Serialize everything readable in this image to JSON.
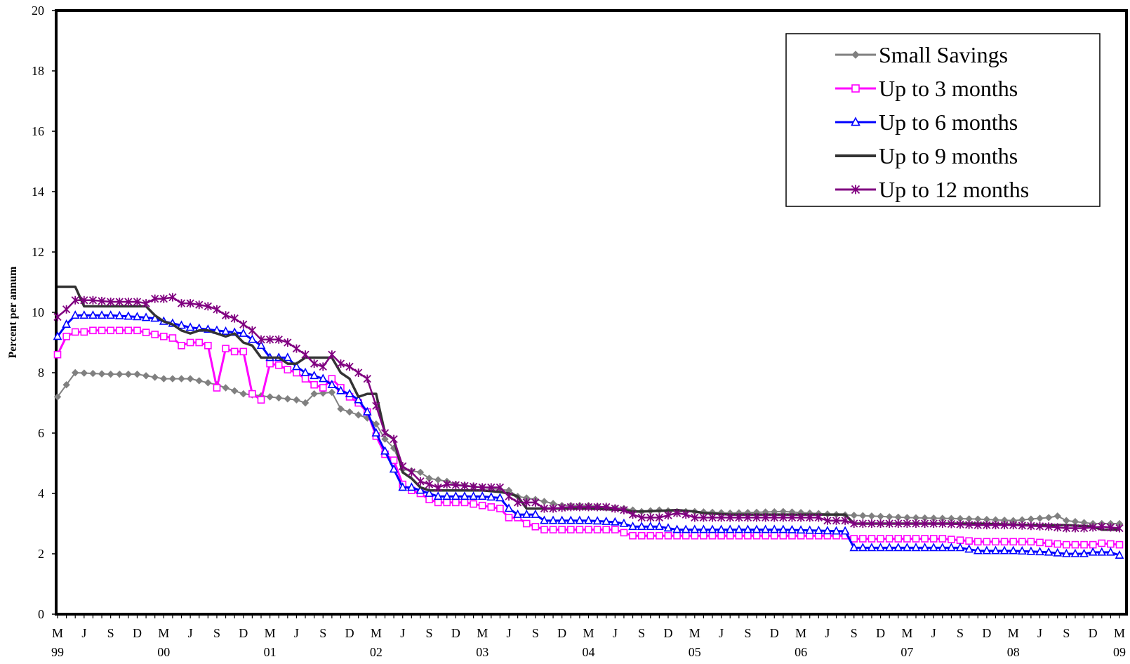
{
  "chart_data": {
    "type": "line",
    "title": "",
    "xlabel": "",
    "ylabel": "Percent per annum",
    "ylim": [
      0,
      20
    ],
    "yticks": [
      0,
      2,
      4,
      6,
      8,
      10,
      12,
      14,
      16,
      18,
      20
    ],
    "x_start": "1999-03",
    "x_end": "2009-03",
    "x_interval": "monthly",
    "x_tick_months": [
      "M",
      "J",
      "S",
      "D",
      "M",
      "J",
      "S",
      "D",
      "M",
      "J",
      "S",
      "D",
      "M",
      "J",
      "S",
      "D",
      "M",
      "J",
      "S",
      "D",
      "M",
      "J",
      "S",
      "D",
      "M",
      "J",
      "S",
      "D",
      "M",
      "J",
      "S",
      "D",
      "M",
      "J",
      "S",
      "D",
      "M",
      "J",
      "S",
      "D",
      "M"
    ],
    "x_tick_years": [
      "99",
      "00",
      "01",
      "02",
      "03",
      "04",
      "05",
      "06",
      "07",
      "08",
      "09"
    ],
    "grid": false,
    "legend_position": "top-right",
    "series": [
      {
        "name": "Small Savings",
        "color": "#808080",
        "marker": "diamond",
        "keypoints": [
          [
            0,
            7.2
          ],
          [
            1,
            7.6
          ],
          [
            2,
            8.0
          ],
          [
            6,
            7.95
          ],
          [
            9,
            7.95
          ],
          [
            12,
            7.8
          ],
          [
            15,
            7.8
          ],
          [
            18,
            7.6
          ],
          [
            21,
            7.3
          ],
          [
            24,
            7.2
          ],
          [
            27,
            7.1
          ],
          [
            28,
            7.0
          ],
          [
            29,
            7.3
          ],
          [
            31,
            7.35
          ],
          [
            32,
            6.8
          ],
          [
            33,
            6.7
          ],
          [
            34,
            6.6
          ],
          [
            35,
            6.5
          ],
          [
            36,
            6.3
          ],
          [
            37,
            5.8
          ],
          [
            38,
            5.5
          ],
          [
            39,
            4.8
          ],
          [
            41,
            4.7
          ],
          [
            42,
            4.5
          ],
          [
            44,
            4.4
          ],
          [
            45,
            4.3
          ],
          [
            48,
            4.2
          ],
          [
            51,
            4.1
          ],
          [
            52,
            3.9
          ],
          [
            54,
            3.8
          ],
          [
            57,
            3.6
          ],
          [
            60,
            3.6
          ],
          [
            64,
            3.5
          ],
          [
            66,
            3.4
          ],
          [
            68,
            3.45
          ],
          [
            70,
            3.4
          ],
          [
            72,
            3.4
          ],
          [
            76,
            3.35
          ],
          [
            82,
            3.4
          ],
          [
            88,
            3.3
          ],
          [
            96,
            3.2
          ],
          [
            104,
            3.15
          ],
          [
            108,
            3.1
          ],
          [
            112,
            3.2
          ],
          [
            113,
            3.25
          ],
          [
            114,
            3.1
          ],
          [
            117,
            3.0
          ],
          [
            120,
            3.0
          ]
        ]
      },
      {
        "name": "Up to 3 months",
        "color": "#ff00ff",
        "marker": "square",
        "keypoints": [
          [
            0,
            8.6
          ],
          [
            1,
            9.2
          ],
          [
            2,
            9.35
          ],
          [
            3,
            9.35
          ],
          [
            4,
            9.4
          ],
          [
            9,
            9.4
          ],
          [
            12,
            9.2
          ],
          [
            13,
            9.15
          ],
          [
            14,
            8.9
          ],
          [
            15,
            9.0
          ],
          [
            16,
            9.0
          ],
          [
            17,
            8.9
          ],
          [
            18,
            7.5
          ],
          [
            19,
            8.8
          ],
          [
            20,
            8.7
          ],
          [
            21,
            8.7
          ],
          [
            22,
            7.3
          ],
          [
            23,
            7.1
          ],
          [
            24,
            8.3
          ],
          [
            25,
            8.25
          ],
          [
            26,
            8.1
          ],
          [
            27,
            8.0
          ],
          [
            28,
            7.8
          ],
          [
            29,
            7.6
          ],
          [
            30,
            7.5
          ],
          [
            31,
            7.8
          ],
          [
            32,
            7.5
          ],
          [
            33,
            7.2
          ],
          [
            34,
            7.0
          ],
          [
            35,
            6.7
          ],
          [
            36,
            5.9
          ],
          [
            37,
            5.3
          ],
          [
            38,
            5.1
          ],
          [
            39,
            4.3
          ],
          [
            40,
            4.1
          ],
          [
            41,
            4.0
          ],
          [
            42,
            3.8
          ],
          [
            43,
            3.7
          ],
          [
            46,
            3.7
          ],
          [
            48,
            3.6
          ],
          [
            50,
            3.5
          ],
          [
            51,
            3.2
          ],
          [
            52,
            3.2
          ],
          [
            53,
            3.0
          ],
          [
            54,
            2.9
          ],
          [
            55,
            2.8
          ],
          [
            58,
            2.8
          ],
          [
            60,
            2.8
          ],
          [
            63,
            2.8
          ],
          [
            64,
            2.7
          ],
          [
            65,
            2.6
          ],
          [
            70,
            2.6
          ],
          [
            73,
            2.6
          ],
          [
            78,
            2.6
          ],
          [
            80,
            2.6
          ],
          [
            89,
            2.6
          ],
          [
            90,
            2.5
          ],
          [
            94,
            2.5
          ],
          [
            96,
            2.5
          ],
          [
            98,
            2.5
          ],
          [
            100,
            2.5
          ],
          [
            104,
            2.4
          ],
          [
            110,
            2.4
          ],
          [
            114,
            2.3
          ],
          [
            117,
            2.3
          ],
          [
            118,
            2.35
          ],
          [
            120,
            2.3
          ]
        ]
      },
      {
        "name": "Up to 6 months",
        "color": "#0000ff",
        "marker": "triangle",
        "keypoints": [
          [
            0,
            9.2
          ],
          [
            1,
            9.6
          ],
          [
            2,
            9.9
          ],
          [
            6,
            9.9
          ],
          [
            9,
            9.85
          ],
          [
            11,
            9.8
          ],
          [
            12,
            9.7
          ],
          [
            15,
            9.5
          ],
          [
            18,
            9.4
          ],
          [
            21,
            9.3
          ],
          [
            22,
            9.1
          ],
          [
            23,
            8.9
          ],
          [
            24,
            8.5
          ],
          [
            26,
            8.5
          ],
          [
            27,
            8.2
          ],
          [
            28,
            8.0
          ],
          [
            30,
            7.8
          ],
          [
            31,
            7.6
          ],
          [
            32,
            7.4
          ],
          [
            33,
            7.3
          ],
          [
            34,
            7.1
          ],
          [
            35,
            6.7
          ],
          [
            36,
            6.0
          ],
          [
            37,
            5.4
          ],
          [
            38,
            4.8
          ],
          [
            39,
            4.2
          ],
          [
            40,
            4.2
          ],
          [
            42,
            4.0
          ],
          [
            43,
            3.9
          ],
          [
            48,
            3.9
          ],
          [
            50,
            3.85
          ],
          [
            51,
            3.5
          ],
          [
            52,
            3.3
          ],
          [
            54,
            3.3
          ],
          [
            55,
            3.1
          ],
          [
            58,
            3.1
          ],
          [
            60,
            3.1
          ],
          [
            63,
            3.05
          ],
          [
            64,
            3.0
          ],
          [
            65,
            2.9
          ],
          [
            68,
            2.9
          ],
          [
            70,
            2.8
          ],
          [
            76,
            2.8
          ],
          [
            82,
            2.8
          ],
          [
            88,
            2.75
          ],
          [
            89,
            2.75
          ],
          [
            90,
            2.2
          ],
          [
            96,
            2.2
          ],
          [
            102,
            2.2
          ],
          [
            104,
            2.1
          ],
          [
            108,
            2.1
          ],
          [
            112,
            2.05
          ],
          [
            114,
            2.0
          ],
          [
            116,
            2.0
          ],
          [
            117,
            2.05
          ],
          [
            119,
            2.05
          ],
          [
            120,
            1.95
          ]
        ]
      },
      {
        "name": "Up to 9 months",
        "color": "#333333",
        "marker": "none",
        "keypoints": [
          [
            0,
            10.85
          ],
          [
            1,
            10.85
          ],
          [
            2,
            10.85
          ],
          [
            3,
            10.2
          ],
          [
            4,
            10.2
          ],
          [
            9,
            10.2
          ],
          [
            10,
            10.2
          ],
          [
            11,
            9.9
          ],
          [
            12,
            9.7
          ],
          [
            13,
            9.6
          ],
          [
            14,
            9.4
          ],
          [
            15,
            9.3
          ],
          [
            16,
            9.4
          ],
          [
            17,
            9.4
          ],
          [
            18,
            9.3
          ],
          [
            19,
            9.2
          ],
          [
            20,
            9.3
          ],
          [
            21,
            9.0
          ],
          [
            22,
            8.9
          ],
          [
            23,
            8.5
          ],
          [
            24,
            8.5
          ],
          [
            25,
            8.5
          ],
          [
            26,
            8.3
          ],
          [
            27,
            8.3
          ],
          [
            28,
            8.5
          ],
          [
            29,
            8.5
          ],
          [
            30,
            8.5
          ],
          [
            31,
            8.5
          ],
          [
            32,
            8.0
          ],
          [
            33,
            7.8
          ],
          [
            34,
            7.2
          ],
          [
            35,
            7.3
          ],
          [
            36,
            7.3
          ],
          [
            37,
            6.0
          ],
          [
            38,
            5.8
          ],
          [
            39,
            4.7
          ],
          [
            40,
            4.5
          ],
          [
            41,
            4.2
          ],
          [
            42,
            4.1
          ],
          [
            44,
            4.1
          ],
          [
            48,
            4.1
          ],
          [
            50,
            4.05
          ],
          [
            51,
            4.0
          ],
          [
            52,
            3.9
          ],
          [
            53,
            3.5
          ],
          [
            54,
            3.5
          ],
          [
            55,
            3.5
          ],
          [
            56,
            3.5
          ],
          [
            60,
            3.5
          ],
          [
            64,
            3.45
          ],
          [
            65,
            3.4
          ],
          [
            66,
            3.4
          ],
          [
            70,
            3.45
          ],
          [
            72,
            3.4
          ],
          [
            73,
            3.35
          ],
          [
            76,
            3.3
          ],
          [
            82,
            3.3
          ],
          [
            88,
            3.3
          ],
          [
            89,
            3.3
          ],
          [
            90,
            3.0
          ],
          [
            96,
            3.0
          ],
          [
            104,
            3.0
          ],
          [
            110,
            2.95
          ],
          [
            114,
            2.95
          ],
          [
            117,
            2.9
          ],
          [
            118,
            2.8
          ],
          [
            120,
            2.8
          ]
        ]
      },
      {
        "name": "Up to 12 months",
        "color": "#800080",
        "marker": "asterisk",
        "keypoints": [
          [
            0,
            9.85
          ],
          [
            1,
            10.1
          ],
          [
            2,
            10.4
          ],
          [
            3,
            10.4
          ],
          [
            4,
            10.4
          ],
          [
            6,
            10.35
          ],
          [
            9,
            10.35
          ],
          [
            10,
            10.3
          ],
          [
            11,
            10.45
          ],
          [
            12,
            10.45
          ],
          [
            13,
            10.5
          ],
          [
            14,
            10.3
          ],
          [
            15,
            10.3
          ],
          [
            16,
            10.25
          ],
          [
            17,
            10.2
          ],
          [
            18,
            10.1
          ],
          [
            19,
            9.9
          ],
          [
            20,
            9.8
          ],
          [
            21,
            9.6
          ],
          [
            22,
            9.4
          ],
          [
            23,
            9.1
          ],
          [
            24,
            9.1
          ],
          [
            25,
            9.1
          ],
          [
            26,
            9.0
          ],
          [
            27,
            8.8
          ],
          [
            28,
            8.6
          ],
          [
            29,
            8.3
          ],
          [
            30,
            8.2
          ],
          [
            31,
            8.6
          ],
          [
            32,
            8.3
          ],
          [
            33,
            8.2
          ],
          [
            34,
            8.0
          ],
          [
            35,
            7.8
          ],
          [
            36,
            6.9
          ],
          [
            37,
            6.0
          ],
          [
            38,
            5.8
          ],
          [
            39,
            4.9
          ],
          [
            40,
            4.7
          ],
          [
            41,
            4.4
          ],
          [
            42,
            4.3
          ],
          [
            43,
            4.2
          ],
          [
            44,
            4.3
          ],
          [
            48,
            4.2
          ],
          [
            50,
            4.2
          ],
          [
            51,
            3.9
          ],
          [
            52,
            3.7
          ],
          [
            53,
            3.7
          ],
          [
            54,
            3.7
          ],
          [
            55,
            3.5
          ],
          [
            56,
            3.5
          ],
          [
            58,
            3.55
          ],
          [
            60,
            3.55
          ],
          [
            62,
            3.55
          ],
          [
            63,
            3.5
          ],
          [
            64,
            3.45
          ],
          [
            65,
            3.3
          ],
          [
            66,
            3.2
          ],
          [
            68,
            3.2
          ],
          [
            70,
            3.35
          ],
          [
            71,
            3.3
          ],
          [
            72,
            3.2
          ],
          [
            76,
            3.2
          ],
          [
            80,
            3.2
          ],
          [
            86,
            3.2
          ],
          [
            87,
            3.1
          ],
          [
            89,
            3.1
          ],
          [
            90,
            3.0
          ],
          [
            96,
            3.0
          ],
          [
            100,
            3.0
          ],
          [
            104,
            2.95
          ],
          [
            108,
            2.95
          ],
          [
            112,
            2.9
          ],
          [
            114,
            2.85
          ],
          [
            116,
            2.85
          ],
          [
            118,
            2.9
          ],
          [
            120,
            2.85
          ]
        ]
      }
    ]
  }
}
